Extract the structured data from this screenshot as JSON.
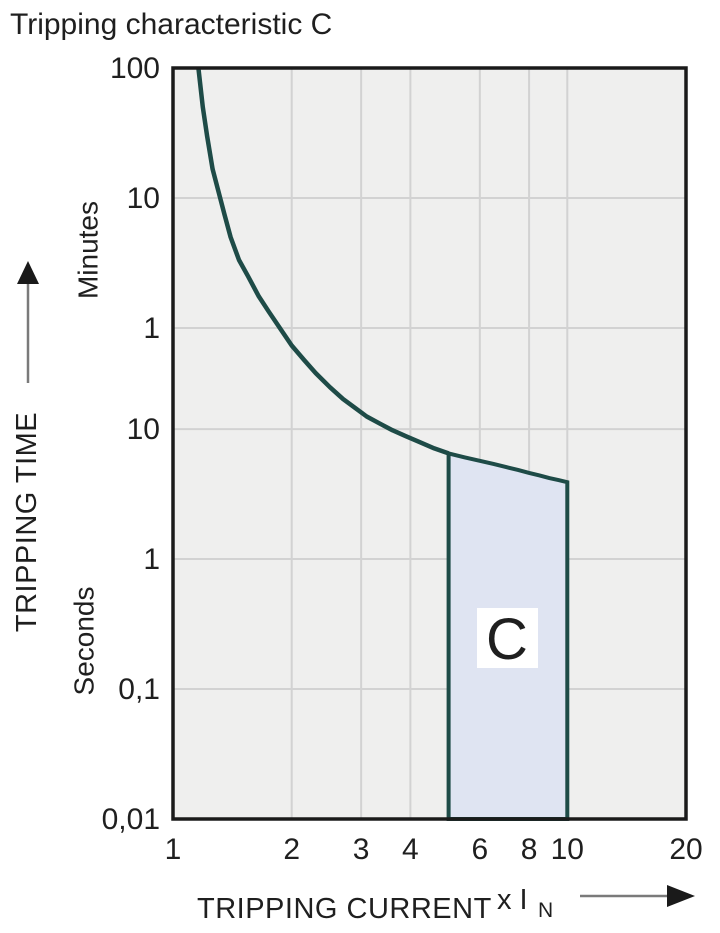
{
  "chart_data": {
    "type": "line",
    "title": "Tripping characteristic C",
    "colors": {
      "curve": "#1e4b47",
      "region_fill": "#dfe4f2",
      "plot_background": "#efefee",
      "gridline": "#d2d2d2",
      "axis": "#1a1a1a"
    },
    "x_axis": {
      "label": "TRIPPING CURRENT",
      "multiplier_label": "x I",
      "multiplier_subscript": "N",
      "scale": "log",
      "range": [
        1,
        20
      ],
      "tick_values": [
        1,
        2,
        3,
        4,
        6,
        8,
        10,
        20
      ],
      "tick_labels": [
        "1",
        "2",
        "3",
        "4",
        "6",
        "8",
        "10",
        "20"
      ],
      "gridline_values": [
        2,
        3,
        4,
        6,
        8,
        10
      ]
    },
    "y_axis": {
      "label": "TRIPPING TIME",
      "scale": "log",
      "range_seconds": [
        0.01,
        6000
      ],
      "units": [
        {
          "name": "Minutes"
        },
        {
          "name": "Seconds"
        }
      ],
      "ticks": [
        {
          "label": "100",
          "seconds": 6000,
          "unit": "Minutes"
        },
        {
          "label": "10",
          "seconds": 600,
          "unit": "Minutes"
        },
        {
          "label": "1",
          "seconds": 60,
          "unit": "Minutes"
        },
        {
          "label": "10",
          "seconds": 10,
          "unit": "Seconds"
        },
        {
          "label": "1",
          "seconds": 1,
          "unit": "Seconds"
        },
        {
          "label": "0,1",
          "seconds": 0.1,
          "unit": "Seconds"
        },
        {
          "label": "0,01",
          "seconds": 0.01,
          "unit": "Seconds"
        }
      ],
      "gridline_seconds": [
        600,
        60,
        10,
        1,
        0.1
      ]
    },
    "series": [
      {
        "name": "tripping-curve",
        "points": [
          [
            1.16,
            6000
          ],
          [
            1.19,
            3000
          ],
          [
            1.22,
            1800
          ],
          [
            1.26,
            1000
          ],
          [
            1.3,
            700
          ],
          [
            1.35,
            450
          ],
          [
            1.4,
            300
          ],
          [
            1.47,
            200
          ],
          [
            1.55,
            150
          ],
          [
            1.65,
            105
          ],
          [
            1.75,
            80
          ],
          [
            1.88,
            58
          ],
          [
            2.0,
            44
          ],
          [
            2.15,
            34
          ],
          [
            2.3,
            27
          ],
          [
            2.5,
            21
          ],
          [
            2.7,
            17
          ],
          [
            2.9,
            14.5
          ],
          [
            3.1,
            12.5
          ],
          [
            3.35,
            11
          ],
          [
            3.6,
            9.8
          ],
          [
            3.9,
            8.8
          ],
          [
            4.2,
            8.0
          ],
          [
            4.6,
            7.1
          ],
          [
            5.0,
            6.5
          ]
        ]
      }
    ],
    "region": {
      "label": "C",
      "x_range": [
        5,
        10
      ],
      "bottom_seconds": 0.01,
      "top_points": [
        [
          5,
          6.5
        ],
        [
          5.5,
          6.05
        ],
        [
          6,
          5.7
        ],
        [
          6.5,
          5.4
        ],
        [
          7,
          5.1
        ],
        [
          7.5,
          4.85
        ],
        [
          8,
          4.6
        ],
        [
          8.5,
          4.4
        ],
        [
          9,
          4.2
        ],
        [
          9.5,
          4.05
        ],
        [
          10,
          3.9
        ]
      ]
    }
  }
}
